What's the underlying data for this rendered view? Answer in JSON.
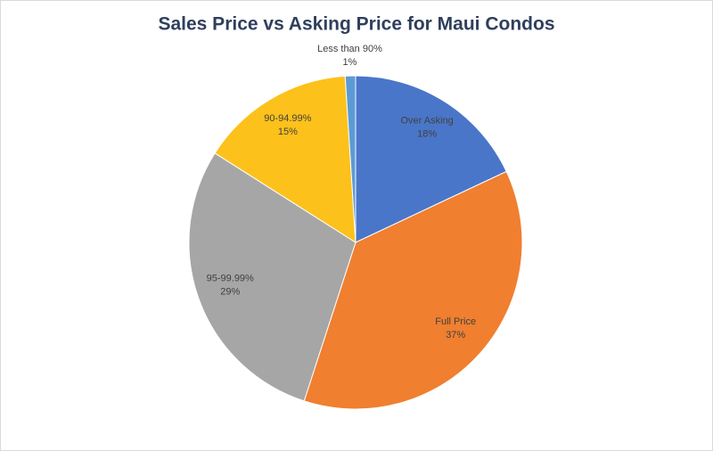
{
  "chart_data": {
    "type": "pie",
    "title": "Sales Price vs Asking Price for Maui Condos",
    "categories": [
      "Over Asking",
      "Full Price",
      "95-99.99%",
      "90-94.99%",
      "Less than 90%"
    ],
    "values": [
      18,
      37,
      29,
      15,
      1
    ],
    "value_labels": [
      "18%",
      "37%",
      "29%",
      "15%",
      "1%"
    ],
    "colors": [
      "#4a76c9",
      "#f07f2f",
      "#a6a6a6",
      "#fdc11b",
      "#5b9bd5"
    ]
  }
}
